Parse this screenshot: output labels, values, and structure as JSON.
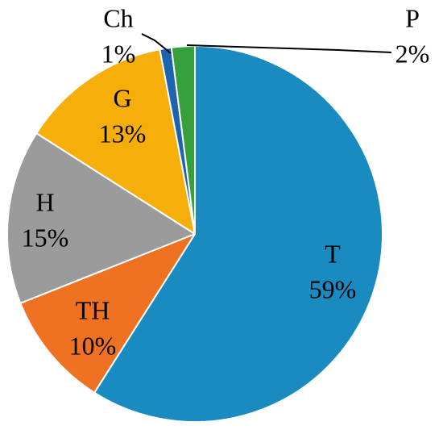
{
  "chart_data": {
    "type": "pie",
    "title": "",
    "slices": [
      {
        "label": "T",
        "value": 59,
        "percent_label": "59%",
        "color": "#1a8bc1"
      },
      {
        "label": "TH",
        "value": 10,
        "percent_label": "10%",
        "color": "#ee7222"
      },
      {
        "label": "H",
        "value": 15,
        "percent_label": "15%",
        "color": "#9b9b9b"
      },
      {
        "label": "G",
        "value": 13,
        "percent_label": "13%",
        "color": "#f6ae0a"
      },
      {
        "label": "Ch",
        "value": 1,
        "percent_label": "1%",
        "color": "#1e63ad"
      },
      {
        "label": "P",
        "value": 2,
        "percent_label": "2%",
        "color": "#36a03d"
      }
    ],
    "start_angle_deg": 0,
    "direction": "clockwise",
    "slice_border_color": "#ffffff",
    "leader_lines_for": [
      "Ch",
      "P"
    ]
  }
}
